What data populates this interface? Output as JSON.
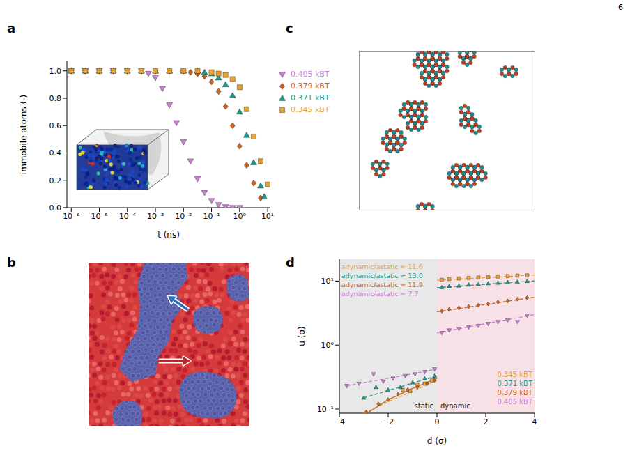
{
  "page_number": "6",
  "chart_data": [
    {
      "panel": "a",
      "type": "scatter",
      "xlabel": "t (ns)",
      "ylabel": "immobile atoms (-)",
      "log": "x",
      "xlim": [
        7e-07,
        12.5
      ],
      "xticks": [
        {
          "value": 1e-06,
          "label": "10⁻⁶"
        },
        {
          "value": 1e-05,
          "label": "10⁻⁵"
        },
        {
          "value": 0.0001,
          "label": "10⁻⁴"
        },
        {
          "value": 0.001,
          "label": "10⁻³"
        },
        {
          "value": 0.01,
          "label": "10⁻²"
        },
        {
          "value": 0.1,
          "label": "10⁻¹"
        },
        {
          "value": 1,
          "label": "10⁰"
        },
        {
          "value": 10,
          "label": "10¹"
        }
      ],
      "ylim": [
        0,
        1.07
      ],
      "yticks": [
        {
          "value": 0,
          "label": "0.0"
        },
        0.2,
        0.4,
        0.6,
        0.8,
        {
          "value": 1,
          "label": "1.0"
        }
      ],
      "legend": "right",
      "series": [
        {
          "name": "0.405 kBT",
          "color": "#c97fd2",
          "marker": "triangle_down",
          "x": [
            1e-06,
            3.162e-06,
            1e-05,
            3.162e-05,
            0.0001,
            0.0003162,
            0.0005623,
            0.001,
            0.001778,
            0.003162,
            0.005623,
            0.01,
            0.01778,
            0.03162,
            0.05623,
            0.1,
            0.1778,
            0.3162,
            0.5623,
            1
          ],
          "values": [
            1,
            1,
            1,
            1,
            1,
            1,
            0.98,
            0.95,
            0.87,
            0.75,
            0.62,
            0.48,
            0.34,
            0.21,
            0.11,
            0.05,
            0.02,
            0.005,
            0,
            0
          ]
        },
        {
          "name": "0.379 kBT",
          "color": "#c9641f",
          "marker": "diamond",
          "x": [
            1e-06,
            3.162e-06,
            1e-05,
            3.162e-05,
            0.0001,
            0.0003162,
            0.001,
            0.003162,
            0.01,
            0.01778,
            0.03162,
            0.05623,
            0.1,
            0.1778,
            0.3162,
            0.5623,
            1,
            1.778,
            3.162,
            5.623
          ],
          "values": [
            1,
            1,
            1,
            1,
            1,
            1,
            1,
            1,
            1,
            0.99,
            0.98,
            0.96,
            0.92,
            0.85,
            0.74,
            0.6,
            0.45,
            0.31,
            0.18,
            0.07
          ]
        },
        {
          "name": "0.371 kBT",
          "color": "#1f9a8a",
          "marker": "triangle",
          "x": [
            1e-06,
            3.162e-06,
            1e-05,
            3.162e-05,
            0.0001,
            0.0003162,
            0.001,
            0.003162,
            0.01,
            0.03162,
            0.05623,
            0.1,
            0.1778,
            0.3162,
            0.5623,
            1,
            1.778,
            3.162,
            5.623,
            7.499
          ],
          "values": [
            1,
            1,
            1,
            1,
            1,
            1,
            1,
            1,
            1,
            1,
            0.99,
            0.98,
            0.95,
            0.9,
            0.82,
            0.7,
            0.53,
            0.33,
            0.16,
            0.08
          ]
        },
        {
          "name": "0.345 kBT",
          "color": "#e2a23a",
          "marker": "square",
          "x": [
            1e-06,
            3.162e-06,
            1e-05,
            3.162e-05,
            0.0001,
            0.0003162,
            0.001,
            0.003162,
            0.01,
            0.03162,
            0.1,
            0.1778,
            0.3162,
            0.5623,
            1,
            1.778,
            3.162,
            5.623,
            10
          ],
          "values": [
            1,
            1,
            1,
            1,
            1,
            1,
            1,
            1,
            1,
            1,
            0.99,
            0.98,
            0.97,
            0.94,
            0.88,
            0.72,
            0.52,
            0.34,
            0.17
          ]
        }
      ]
    },
    {
      "panel": "d",
      "type": "scatter",
      "xlabel": "d (σ)",
      "ylabel": "u (σ)",
      "log": "y",
      "xlim": [
        -4,
        4
      ],
      "xticks": [
        {
          "value": -4,
          "label": "−4"
        },
        {
          "value": -2,
          "label": "−2"
        },
        0,
        2,
        4
      ],
      "ylim": [
        0.086,
        22
      ],
      "yticks": [
        {
          "value": 0.1,
          "label": "10⁻¹"
        },
        {
          "value": 1,
          "label": "10⁰"
        },
        {
          "value": 10,
          "label": "10¹"
        }
      ],
      "legend": "lower right",
      "regions": [
        {
          "label": "static",
          "xlim": [
            -4,
            0
          ],
          "color": "#e8e8e8"
        },
        {
          "label": "dynamic",
          "xlim": [
            0,
            4
          ],
          "color": "#f8e0e7"
        }
      ],
      "series": [
        {
          "name": "0.345 kBT",
          "color": "#e2a23a",
          "marker": "square",
          "annotation": "adynamic/astatic ≈ 11.6",
          "x": [
            -1.4,
            -1.1,
            -0.8,
            -0.5,
            -0.2,
            0.2,
            0.5,
            0.9,
            1.3,
            1.7,
            2.1,
            2.5,
            2.9,
            3.3,
            3.7
          ],
          "values": [
            0.2,
            0.19,
            0.24,
            0.25,
            0.28,
            10.5,
            10.8,
            11.0,
            11.2,
            11.4,
            11.6,
            11.8,
            12.0,
            12.2,
            12.3
          ],
          "fits": [
            {
              "x": [
                -3,
                -2,
                -1,
                0
              ],
              "values": [
                0.085,
                0.13,
                0.19,
                0.28
              ],
              "line_style": "dashed"
            },
            {
              "x": [
                0,
                4
              ],
              "values": [
                10.3,
                12.5
              ],
              "line_style": "dashed"
            }
          ]
        },
        {
          "name": "0.371 kBT",
          "color": "#1f9a8a",
          "marker": "triangle",
          "annotation": "adynamic/astatic ≈ 13.0",
          "x": [
            -3.0,
            -2.5,
            -2.0,
            -1.5,
            -1.0,
            -0.5,
            -0.1,
            0.2,
            0.5,
            0.9,
            1.3,
            1.7,
            2.1,
            2.5,
            2.9,
            3.3,
            3.7
          ],
          "values": [
            0.15,
            0.22,
            0.2,
            0.22,
            0.26,
            0.3,
            0.33,
            8.0,
            8.3,
            8.5,
            8.8,
            9.0,
            9.2,
            9.4,
            9.6,
            9.8,
            10.0
          ],
          "fits": [
            {
              "x": [
                -3,
                0
              ],
              "values": [
                0.15,
                0.33
              ],
              "line_style": "dashed"
            },
            {
              "x": [
                0,
                4
              ],
              "values": [
                7.9,
                10.1
              ],
              "line_style": "dashed"
            }
          ]
        },
        {
          "name": "0.379 kBT",
          "color": "#c9641f",
          "marker": "diamond",
          "annotation": "adynamic/astatic ≈ 11.9",
          "x": [
            -2.9,
            -2.4,
            -2.0,
            -1.6,
            -1.2,
            -0.8,
            -0.4,
            -0.1,
            0.2,
            0.5,
            0.9,
            1.3,
            1.7,
            2.1,
            2.5,
            2.9,
            3.3,
            3.7
          ],
          "values": [
            0.09,
            0.12,
            0.14,
            0.17,
            0.2,
            0.22,
            0.25,
            0.28,
            3.4,
            3.6,
            3.8,
            4.0,
            4.2,
            4.4,
            4.7,
            4.9,
            5.2,
            5.5
          ],
          "fits": [
            {
              "x": [
                -3,
                -2,
                -1,
                0
              ],
              "values": [
                0.08,
                0.14,
                0.21,
                0.3
              ],
              "line_style": "solid"
            },
            {
              "x": [
                0,
                4
              ],
              "values": [
                3.3,
                5.6
              ],
              "line_style": "dashed"
            }
          ]
        },
        {
          "name": "0.405 kBT",
          "color": "#c97fd2",
          "marker": "triangle_down",
          "annotation": "adynamic/astatic ≈ 7.7",
          "x": [
            -3.7,
            -3.2,
            -2.6,
            -2.2,
            -1.8,
            -1.3,
            -0.9,
            -0.5,
            -0.1,
            0.2,
            0.5,
            0.9,
            1.3,
            1.7,
            2.1,
            2.5,
            2.9,
            3.3,
            3.7
          ],
          "values": [
            0.23,
            0.25,
            0.35,
            0.27,
            0.3,
            0.33,
            0.35,
            0.38,
            0.42,
            1.55,
            1.7,
            1.8,
            1.9,
            2.0,
            2.15,
            2.3,
            2.45,
            2.3,
            2.9
          ],
          "fits": [
            {
              "x": [
                -3.7,
                0
              ],
              "values": [
                0.23,
                0.42
              ],
              "line_style": "dashed"
            },
            {
              "x": [
                0,
                4
              ],
              "values": [
                1.55,
                3.0
              ],
              "line_style": "dashed"
            }
          ]
        }
      ]
    }
  ],
  "diagrams": [
    {
      "panel": "b"
    },
    {
      "panel": "c"
    }
  ]
}
